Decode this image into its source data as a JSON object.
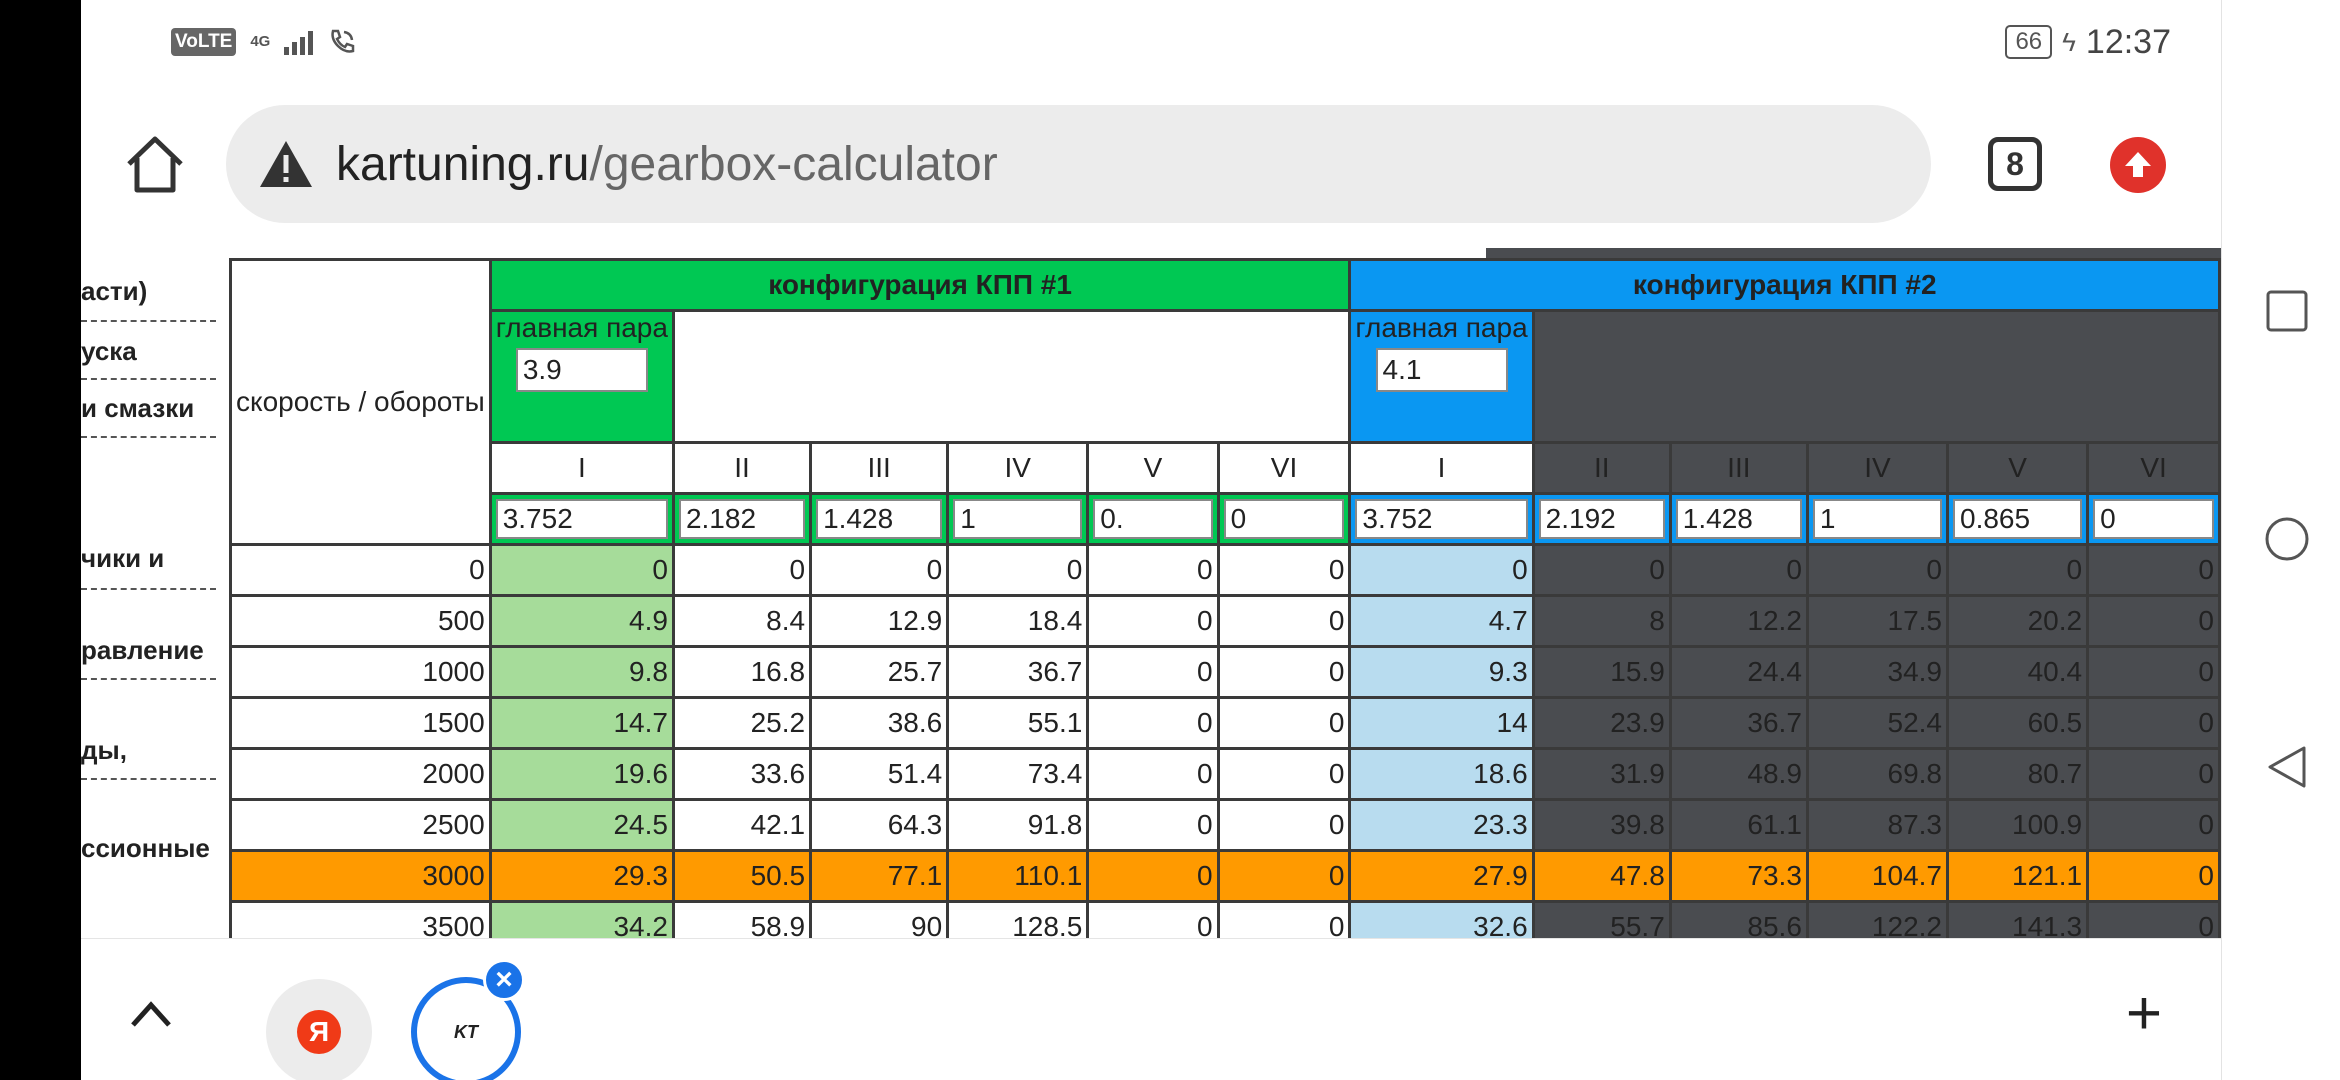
{
  "status_bar": {
    "volte": "VoLTE",
    "network": "4G",
    "battery": "66",
    "time": "12:37"
  },
  "browser": {
    "url_domain": "kartuning.ru",
    "url_path": "/gearbox-calculator",
    "tab_count": "8",
    "icons": [
      "home-icon",
      "warning-icon",
      "tabs-icon",
      "update-icon"
    ]
  },
  "sidebar": {
    "items": [
      "асти)",
      "уска",
      "и смазки",
      "чики и",
      "равление",
      "ды,",
      "ссионные"
    ]
  },
  "table": {
    "speed_header": "скорость / обороты",
    "config1": {
      "title": "конфигурация КПП #1",
      "main_pair_label": "главная пара",
      "main_pair_value": "3.9",
      "gears": [
        "I",
        "II",
        "III",
        "IV",
        "V",
        "VI"
      ],
      "ratios": [
        "3.752",
        "2.182",
        "1.428",
        "1",
        "0.",
        "0"
      ]
    },
    "config2": {
      "title": "конфигурация КПП #2",
      "main_pair_label": "главная пара",
      "main_pair_value": "4.1",
      "gears": [
        "I",
        "II",
        "III",
        "IV",
        "V",
        "VI"
      ],
      "ratios": [
        "3.752",
        "2.192",
        "1.428",
        "1",
        "0.865",
        "0"
      ]
    },
    "rows": [
      {
        "rpm": "0",
        "c1": [
          "0",
          "0",
          "0",
          "0",
          "0",
          "0"
        ],
        "c2": [
          "0",
          "0",
          "0",
          "0",
          "0",
          "0"
        ]
      },
      {
        "rpm": "500",
        "c1": [
          "4.9",
          "8.4",
          "12.9",
          "18.4",
          "0",
          "0"
        ],
        "c2": [
          "4.7",
          "8",
          "12.2",
          "17.5",
          "20.2",
          "0"
        ]
      },
      {
        "rpm": "1000",
        "c1": [
          "9.8",
          "16.8",
          "25.7",
          "36.7",
          "0",
          "0"
        ],
        "c2": [
          "9.3",
          "15.9",
          "24.4",
          "34.9",
          "40.4",
          "0"
        ]
      },
      {
        "rpm": "1500",
        "c1": [
          "14.7",
          "25.2",
          "38.6",
          "55.1",
          "0",
          "0"
        ],
        "c2": [
          "14",
          "23.9",
          "36.7",
          "52.4",
          "60.5",
          "0"
        ]
      },
      {
        "rpm": "2000",
        "c1": [
          "19.6",
          "33.6",
          "51.4",
          "73.4",
          "0",
          "0"
        ],
        "c2": [
          "18.6",
          "31.9",
          "48.9",
          "69.8",
          "80.7",
          "0"
        ]
      },
      {
        "rpm": "2500",
        "c1": [
          "24.5",
          "42.1",
          "64.3",
          "91.8",
          "0",
          "0"
        ],
        "c2": [
          "23.3",
          "39.8",
          "61.1",
          "87.3",
          "100.9",
          "0"
        ]
      },
      {
        "rpm": "3000",
        "c1": [
          "29.3",
          "50.5",
          "77.1",
          "110.1",
          "0",
          "0"
        ],
        "c2": [
          "27.9",
          "47.8",
          "73.3",
          "104.7",
          "121.1",
          "0"
        ]
      },
      {
        "rpm": "3500",
        "c1": [
          "34.2",
          "58.9",
          "90",
          "128.5",
          "0",
          "0"
        ],
        "c2": [
          "32.6",
          "55.7",
          "85.6",
          "122.2",
          "141.3",
          "0"
        ]
      }
    ],
    "highlight_row": "3000",
    "colors": {
      "config1": "#00c853",
      "config2": "#0a97f2",
      "highlight": "#ff9a00",
      "dark": "#4a4c50"
    }
  },
  "bottom_bar": {
    "yandex_letter": "Я",
    "kt_logo": "KT",
    "close_symbol": "×",
    "new_tab_symbol": "+"
  }
}
